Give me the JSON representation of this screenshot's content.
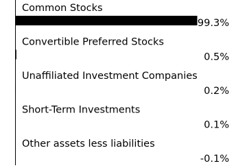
{
  "chart_data": {
    "type": "bar",
    "orientation": "horizontal",
    "categories": [
      "Common Stocks",
      "Convertible Preferred Stocks",
      "Unaffiliated Investment Companies",
      "Short-Term Investments",
      "Other assets less liabilities"
    ],
    "values": [
      99.3,
      0.5,
      0.2,
      0.1,
      -0.1
    ],
    "value_labels": [
      "99.3%",
      "0.5%",
      "0.2%",
      "0.1%",
      "-0.1%"
    ],
    "color": "#000000"
  }
}
